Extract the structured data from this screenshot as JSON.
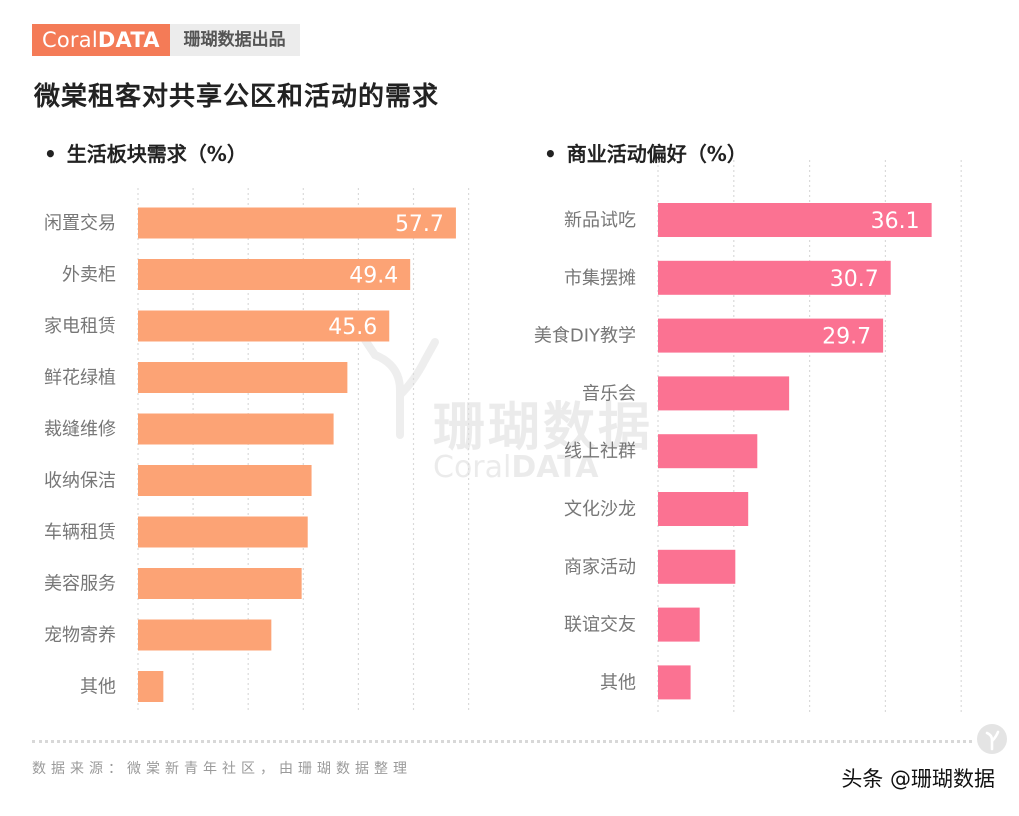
{
  "header": {
    "logo_light": "Coral",
    "logo_bold": "DATA",
    "tag": "珊瑚数据出品"
  },
  "title": "微棠租客对共享公区和活动的需求",
  "watermark": {
    "cn": "珊瑚数据",
    "en_light": "Coral",
    "en_bold": "DATA"
  },
  "footer": {
    "source": "数据来源：微棠新青年社区，由珊瑚数据整理",
    "credit": "头条 @珊瑚数据"
  },
  "colors": {
    "left_bar": "#FCA375",
    "right_bar": "#FB7292",
    "brand": "#F47B57"
  },
  "chart_data": [
    {
      "type": "bar",
      "orientation": "horizontal",
      "title": "生活板块需求（%）",
      "categories": [
        "闲置交易",
        "外卖柜",
        "家电租赁",
        "鲜花绿植",
        "裁缝维修",
        "收纳保洁",
        "车辆租赁",
        "美容服务",
        "宠物寄养",
        "其他"
      ],
      "values": [
        57.7,
        49.4,
        45.6,
        38.0,
        35.5,
        31.5,
        30.8,
        29.7,
        24.2,
        4.6
      ],
      "data_labels": [
        "57.7",
        "49.4",
        "45.6",
        "",
        "",
        "",
        "",
        "",
        "",
        ""
      ],
      "xlim": [
        0,
        60
      ],
      "grid": true
    },
    {
      "type": "bar",
      "orientation": "horizontal",
      "title": "商业活动偏好（%）",
      "categories": [
        "新品试吃",
        "市集摆摊",
        "美食DIY教学",
        "音乐会",
        "线上社群",
        "文化沙龙",
        "商家活动",
        "联谊交友",
        "其他"
      ],
      "values": [
        36.1,
        30.7,
        29.7,
        17.3,
        13.1,
        11.9,
        10.2,
        5.5,
        4.3
      ],
      "data_labels": [
        "36.1",
        "30.7",
        "29.7",
        "",
        "",
        "",
        "",
        "",
        ""
      ],
      "xlim": [
        0,
        40
      ],
      "grid": true
    }
  ]
}
